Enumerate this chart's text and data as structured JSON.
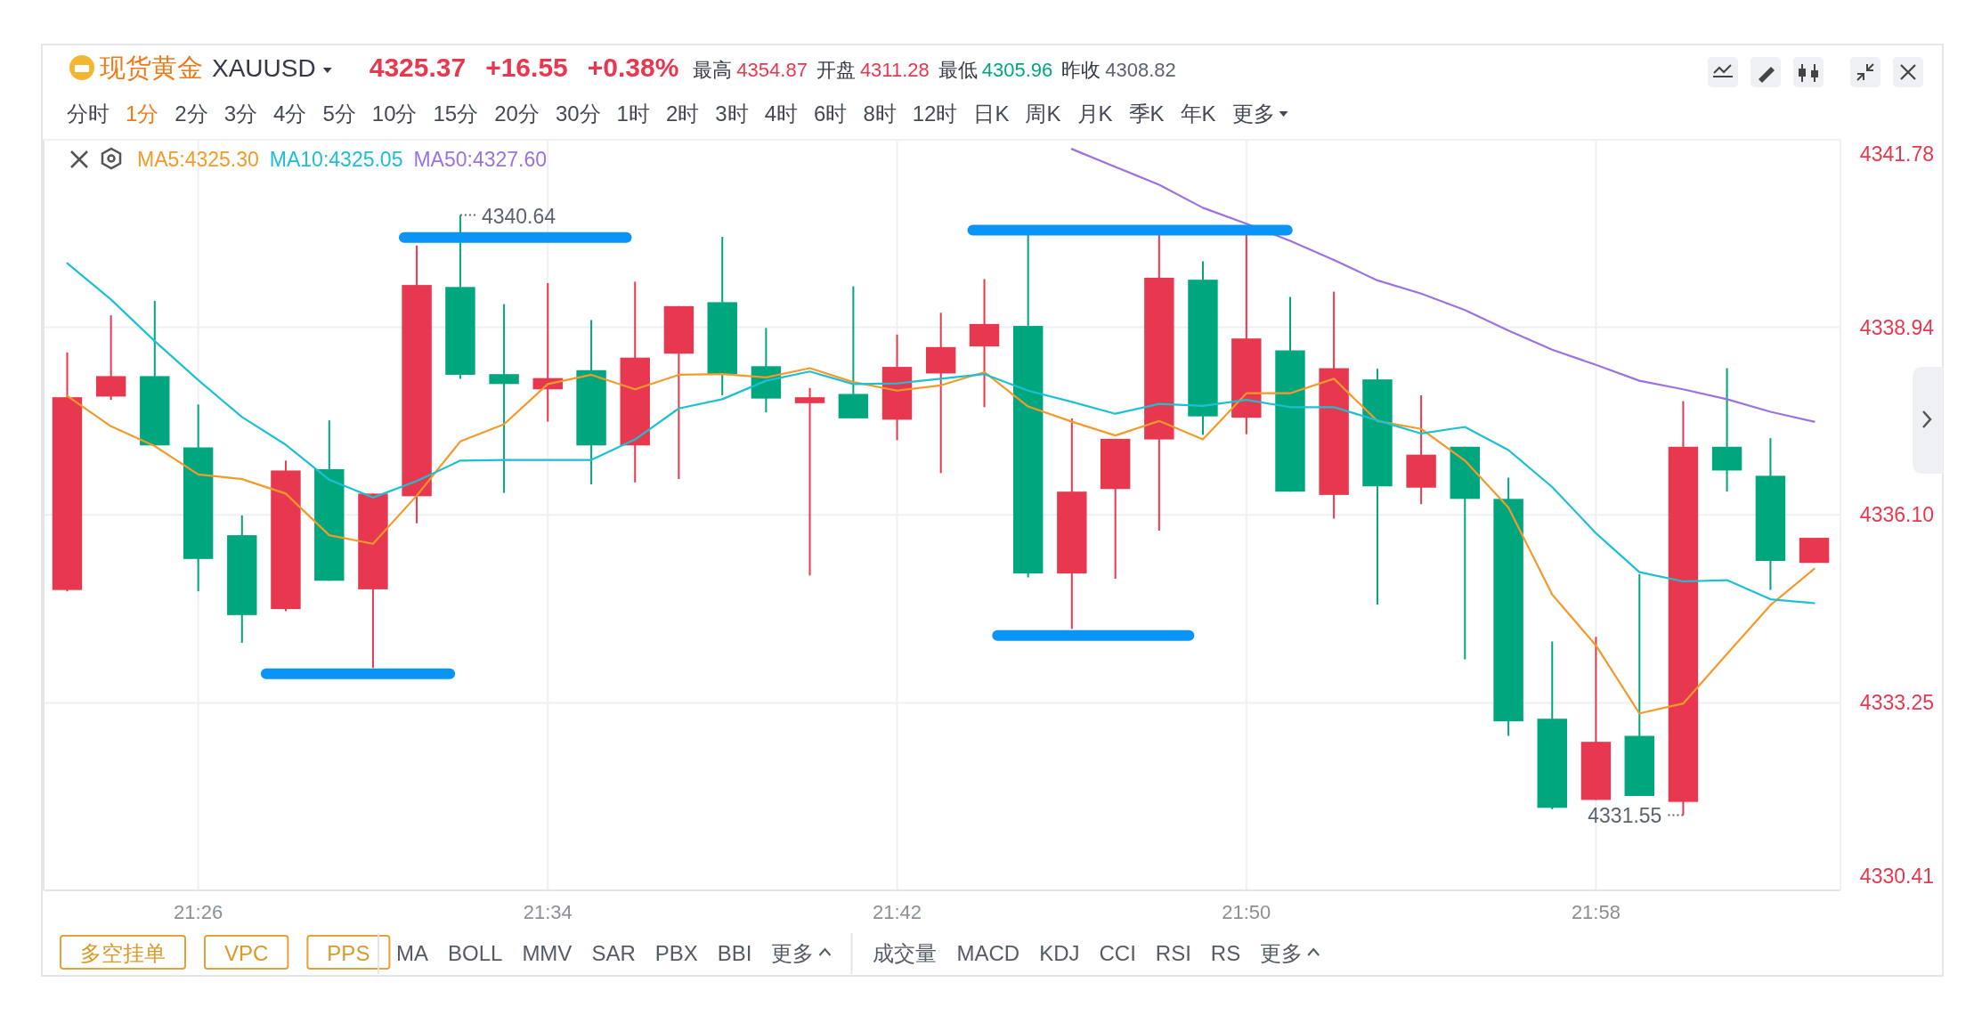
{
  "chart_data": {
    "type": "candlestick",
    "title": "现货黄金",
    "annotations": [
      "XAUUSD",
      "4325.37",
      "+16.55",
      "+0.38%",
      "最高",
      "4354.87",
      "开盘",
      "4311.28",
      "最低",
      "4305.96",
      "昨收",
      "4308.82",
      "分时",
      "1分",
      "2分",
      "3分",
      "4分",
      "5分",
      "10分",
      "15分",
      "20分",
      "30分",
      "1时",
      "2时",
      "3时",
      "4时",
      "6时",
      "8时",
      "12时",
      "日K",
      "周K",
      "月K",
      "季K",
      "年K",
      "更多",
      "多空挂单",
      "VPC",
      "PPS",
      "MA",
      "BOLL",
      "MMV",
      "SAR",
      "PBX",
      "BBI",
      "更多",
      "成交量",
      "MACD",
      "KDJ",
      "CCI",
      "RSI",
      "RS",
      "更多",
      {
        "text": "4340.64",
        "x": 21.5333,
        "y": 4340.64
      },
      {
        "text": "4331.55",
        "x": 22.0,
        "y": 4331.55
      }
    ],
    "x": [
      21.3833,
      21.4,
      21.4167,
      21.4333,
      21.45,
      21.4667,
      21.4833,
      21.5,
      21.5167,
      21.5333,
      21.55,
      21.5667,
      21.5833,
      21.6,
      21.6167,
      21.6333,
      21.65,
      21.6667,
      21.6833,
      21.7,
      21.7167,
      21.7333,
      21.75,
      21.7667,
      21.7833,
      21.8,
      21.8167,
      21.8333,
      21.85,
      21.8667,
      21.8833,
      21.9,
      21.9167,
      21.9333,
      21.95,
      21.9667,
      21.9833,
      22.0,
      22.0167,
      22.0333,
      22.05
    ],
    "ohlc": [
      [
        4334.96,
        4338.56,
        4334.94,
        4337.88
      ],
      [
        4337.89,
        4339.12,
        4337.84,
        4338.2
      ],
      [
        4338.2,
        4339.34,
        4337.15,
        4337.15
      ],
      [
        4337.12,
        4337.77,
        4334.94,
        4335.43
      ],
      [
        4335.79,
        4336.09,
        4334.16,
        4334.58
      ],
      [
        4334.67,
        4336.92,
        4334.64,
        4336.77
      ],
      [
        4336.79,
        4337.53,
        4335.1,
        4335.1
      ],
      [
        4334.97,
        4336.42,
        4333.78,
        4336.42
      ],
      [
        4336.38,
        4340.18,
        4335.97,
        4339.58
      ],
      [
        4339.55,
        4340.64,
        4338.16,
        4338.22
      ],
      [
        4338.23,
        4339.29,
        4336.43,
        4338.08
      ],
      [
        4338.0,
        4339.61,
        4337.51,
        4338.17
      ],
      [
        4338.29,
        4339.05,
        4336.56,
        4337.15
      ],
      [
        4337.15,
        4339.63,
        4336.59,
        4338.48
      ],
      [
        4338.54,
        4339.26,
        4336.64,
        4339.26
      ],
      [
        4339.32,
        4340.31,
        4337.91,
        4338.23
      ],
      [
        4338.35,
        4338.93,
        4337.65,
        4337.86
      ],
      [
        4337.79,
        4338.02,
        4335.18,
        4337.88
      ],
      [
        4337.93,
        4339.56,
        4337.56,
        4337.56
      ],
      [
        4337.54,
        4338.83,
        4337.23,
        4338.34
      ],
      [
        4338.24,
        4339.16,
        4336.73,
        4338.64
      ],
      [
        4338.65,
        4339.67,
        4337.73,
        4338.99
      ],
      [
        4338.96,
        4340.34,
        4335.15,
        4335.21
      ],
      [
        4335.21,
        4337.56,
        4334.37,
        4336.45
      ],
      [
        4336.49,
        4337.25,
        4335.13,
        4337.25
      ],
      [
        4337.24,
        4340.34,
        4335.86,
        4339.69
      ],
      [
        4339.66,
        4339.94,
        4337.31,
        4337.59
      ],
      [
        4337.57,
        4340.34,
        4337.32,
        4338.77
      ],
      [
        4338.59,
        4339.4,
        4336.45,
        4336.45
      ],
      [
        4336.4,
        4339.48,
        4336.04,
        4338.32
      ],
      [
        4338.15,
        4338.31,
        4334.74,
        4336.53
      ],
      [
        4336.51,
        4337.91,
        4336.26,
        4337.01
      ],
      [
        4337.13,
        4337.13,
        4333.91,
        4336.34
      ],
      [
        4336.34,
        4336.66,
        4332.75,
        4332.97
      ],
      [
        4333.01,
        4334.18,
        4331.64,
        4331.66
      ],
      [
        4331.78,
        4334.25,
        4331.78,
        4332.66
      ],
      [
        4332.75,
        4335.2,
        4331.84,
        4331.84
      ],
      [
        4331.75,
        4337.82,
        4331.55,
        4337.13
      ],
      [
        4337.13,
        4338.32,
        4336.45,
        4336.77
      ],
      [
        4336.69,
        4337.26,
        4334.96,
        4335.4
      ],
      [
        4335.37,
        4335.75,
        4335.37,
        4335.75
      ]
    ],
    "colors": [
      "#e8384f",
      "#e8384f",
      "#00a67e",
      "#00a67e",
      "#00a67e",
      "#e8384f",
      "#00a67e",
      "#e8384f",
      "#e8384f",
      "#00a67e",
      "#00a67e",
      "#e8384f",
      "#00a67e",
      "#e8384f",
      "#e8384f",
      "#00a67e",
      "#00a67e",
      "#e8384f",
      "#00a67e",
      "#e8384f",
      "#e8384f",
      "#e8384f",
      "#00a67e",
      "#e8384f",
      "#e8384f",
      "#e8384f",
      "#00a67e",
      "#e8384f",
      "#00a67e",
      "#e8384f",
      "#00a67e",
      "#e8384f",
      "#00a67e",
      "#00a67e",
      "#00a67e",
      "#e8384f",
      "#00a67e",
      "#e8384f",
      "#00a67e",
      "#00a67e",
      "#e8384f"
    ],
    "series": [
      {
        "name": "MA5:4325.30",
        "type": "line",
        "color": "#f39a2b",
        "values": [
          4337.9,
          4337.44,
          4337.14,
          4336.71,
          4336.64,
          4336.42,
          4335.79,
          4335.66,
          4336.39,
          4337.21,
          4337.47,
          4338.08,
          4338.22,
          4338.0,
          4338.22,
          4338.23,
          4338.18,
          4338.32,
          4338.11,
          4337.98,
          4338.06,
          4338.26,
          4337.74,
          4337.51,
          4337.3,
          4337.52,
          4337.24,
          4337.94,
          4337.94,
          4338.16,
          4337.52,
          4337.4,
          4336.92,
          4336.21,
          4334.89,
          4334.12,
          4333.09,
          4333.24,
          4333.99,
          4334.73,
          4335.28
        ]
      },
      {
        "name": "MA10:4325.05",
        "type": "line",
        "color": "#1cc0d2",
        "values": [
          4339.91,
          4339.36,
          4338.73,
          4338.14,
          4337.58,
          4337.16,
          4336.63,
          4336.36,
          4336.61,
          4336.92,
          4336.93,
          4336.93,
          4336.93,
          4337.24,
          4337.71,
          4337.85,
          4338.13,
          4338.27,
          4338.08,
          4338.09,
          4338.16,
          4338.23,
          4337.98,
          4337.81,
          4337.63,
          4337.78,
          4337.75,
          4337.84,
          4337.73,
          4337.73,
          4337.53,
          4337.33,
          4337.43,
          4337.08,
          4336.52,
          4335.82,
          4335.23,
          4335.09,
          4335.11,
          4334.82,
          4334.76
        ]
      },
      {
        "name": "MA50:4327.60",
        "type": "line",
        "color": "#9b72e0",
        "values": [
          null,
          null,
          null,
          null,
          null,
          null,
          null,
          null,
          null,
          null,
          null,
          null,
          null,
          null,
          null,
          null,
          null,
          null,
          null,
          null,
          null,
          null,
          null,
          4341.64,
          4341.37,
          4341.1,
          4340.75,
          4340.51,
          4340.25,
          4339.96,
          4339.65,
          4339.45,
          4339.2,
          4338.89,
          4338.6,
          4338.37,
          4338.13,
          4338.0,
          4337.85,
          4337.66,
          4337.51
        ]
      },
      {
        "type": "line",
        "color": "#0a94f5",
        "x": [
          21.5119,
          21.5967
        ],
        "values": [
          4340.3,
          4340.3
        ]
      },
      {
        "type": "line",
        "color": "#0a94f5",
        "x": [
          21.4592,
          21.5293
        ],
        "values": [
          4333.69,
          4333.69
        ]
      },
      {
        "type": "line",
        "color": "#0a94f5",
        "x": [
          21.7289,
          21.8489
        ],
        "values": [
          4340.41,
          4340.41
        ]
      },
      {
        "type": "line",
        "color": "#0a94f5",
        "x": [
          21.7383,
          21.8114
        ],
        "values": [
          4334.27,
          4334.27
        ]
      }
    ],
    "xlim": [
      21.3743,
      22.06
    ],
    "xticks": [
      {
        "value": 21.4333,
        "label": "21:26"
      },
      {
        "value": 21.5667,
        "label": "21:34"
      },
      {
        "value": 21.7,
        "label": "21:42"
      },
      {
        "value": 21.8333,
        "label": "21:50"
      },
      {
        "value": 21.9667,
        "label": "21:58"
      }
    ],
    "ylim": [
      4330.41,
      4341.78
    ],
    "yticks": [
      4341.78,
      4338.94,
      {
        "value": 4336.1,
        "label": "4336.10"
      },
      4333.25,
      4330.41
    ],
    "grid": true,
    "legend": "top left"
  }
}
